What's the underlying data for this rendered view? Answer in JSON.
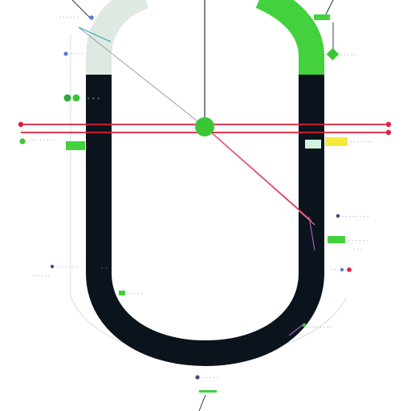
{
  "diagram": {
    "labels": [],
    "colors": {
      "track_dark": "#0b141c",
      "track_light": "#dde9e1",
      "green": "#3bc637",
      "green_accent": "#43d13d",
      "red": "#e11d3a",
      "navy": "#3b4b8a",
      "blue_dot": "#5b7bd8",
      "gray_line": "#6b7280",
      "light_gray": "#cfd3d8",
      "pink": "#e37fb0",
      "magenta": "#a05cc4",
      "yellow": "#f4ea3c",
      "mint": "#cff5e0"
    }
  }
}
